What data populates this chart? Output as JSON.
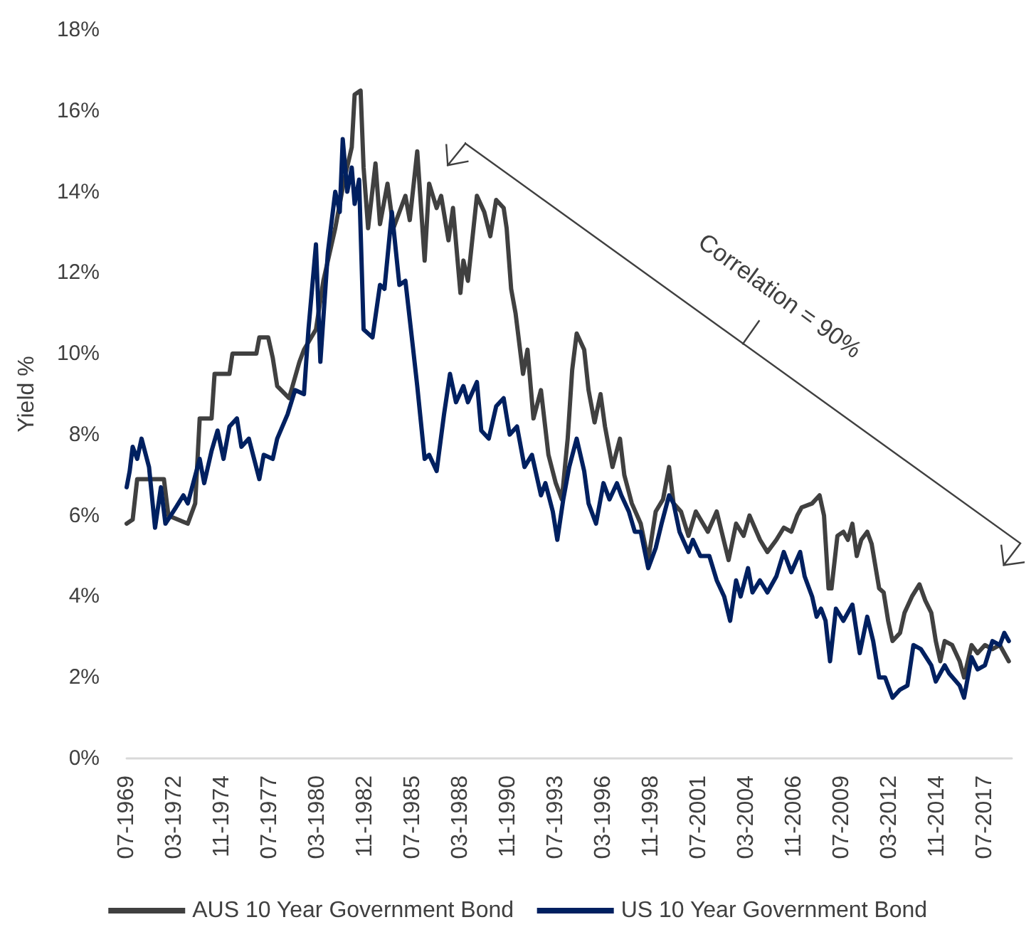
{
  "chart_data": {
    "type": "line",
    "ylabel": "Yield %",
    "annotations": [
      "Correlation = 90%"
    ],
    "xlim": [
      "1969-07",
      "2019-01"
    ],
    "xticks": [
      {
        "value": "1969-07",
        "label": "07-1969"
      },
      {
        "value": "1972-03",
        "label": "03-1972"
      },
      {
        "value": "1974-11",
        "label": "11-1974"
      },
      {
        "value": "1977-07",
        "label": "07-1977"
      },
      {
        "value": "1980-03",
        "label": "03-1980"
      },
      {
        "value": "1982-11",
        "label": "11-1982"
      },
      {
        "value": "1985-07",
        "label": "07-1985"
      },
      {
        "value": "1988-03",
        "label": "03-1988"
      },
      {
        "value": "1990-11",
        "label": "11-1990"
      },
      {
        "value": "1993-07",
        "label": "07-1993"
      },
      {
        "value": "1996-03",
        "label": "03-1996"
      },
      {
        "value": "1998-11",
        "label": "11-1998"
      },
      {
        "value": "2001-07",
        "label": "07-2001"
      },
      {
        "value": "2004-03",
        "label": "03-2004"
      },
      {
        "value": "2006-11",
        "label": "11-2006"
      },
      {
        "value": "2009-07",
        "label": "07-2009"
      },
      {
        "value": "2012-03",
        "label": "03-2012"
      },
      {
        "value": "2014-11",
        "label": "11-2014"
      },
      {
        "value": "2017-07",
        "label": "07-2017"
      }
    ],
    "ylim": [
      0,
      18
    ],
    "yticks": [
      {
        "value": 0,
        "label": "0%"
      },
      {
        "value": 2,
        "label": "2%"
      },
      {
        "value": 4,
        "label": "4%"
      },
      {
        "value": 6,
        "label": "6%"
      },
      {
        "value": 8,
        "label": "8%"
      },
      {
        "value": 10,
        "label": "10%"
      },
      {
        "value": 12,
        "label": "12%"
      },
      {
        "value": 14,
        "label": "14%"
      },
      {
        "value": 16,
        "label": "16%"
      },
      {
        "value": 18,
        "label": "18%"
      }
    ],
    "grid": false,
    "legend": "bottom",
    "marker": "none",
    "line_style": "solid",
    "series": [
      {
        "name": "AUS 10 Year Government Bond",
        "color": "#404040",
        "x": [
          "1969-07",
          "1969-11",
          "1970-02",
          "1971-08",
          "1971-11",
          "1972-12",
          "1973-05",
          "1973-08",
          "1974-04",
          "1974-06",
          "1975-04",
          "1975-06",
          "1976-10",
          "1976-12",
          "1977-06",
          "1977-09",
          "1977-12",
          "1978-08",
          "1979-03",
          "1979-06",
          "1980-02",
          "1980-07",
          "1981-03",
          "1981-09",
          "1982-02",
          "1982-04",
          "1982-08",
          "1982-10",
          "1983-01",
          "1983-06",
          "1983-09",
          "1984-02",
          "1984-06",
          "1985-02",
          "1985-05",
          "1985-10",
          "1986-03",
          "1986-06",
          "1986-11",
          "1987-02",
          "1987-07",
          "1987-10",
          "1988-03",
          "1988-05",
          "1988-08",
          "1989-02",
          "1989-07",
          "1989-11",
          "1990-03",
          "1990-08",
          "1990-10",
          "1991-01",
          "1991-04",
          "1991-09",
          "1991-12",
          "1992-04",
          "1992-09",
          "1993-02",
          "1993-07",
          "1993-11",
          "1994-03",
          "1994-06",
          "1994-09",
          "1995-02",
          "1995-05",
          "1995-09",
          "1996-01",
          "1996-04",
          "1996-09",
          "1997-02",
          "1997-05",
          "1997-10",
          "1998-04",
          "1998-09",
          "1999-02",
          "1999-07",
          "1999-11",
          "2000-02",
          "2000-07",
          "2000-12",
          "2001-05",
          "2002-01",
          "2002-07",
          "2003-03",
          "2003-08",
          "2004-01",
          "2004-05",
          "2004-12",
          "2005-05",
          "2005-11",
          "2006-04",
          "2006-09",
          "2007-01",
          "2007-04",
          "2007-11",
          "2008-04",
          "2008-07",
          "2008-10",
          "2008-12",
          "2009-04",
          "2009-08",
          "2009-11",
          "2010-02",
          "2010-05",
          "2010-08",
          "2010-12",
          "2011-03",
          "2011-08",
          "2011-11",
          "2012-02",
          "2012-05",
          "2012-10",
          "2013-01",
          "2013-06",
          "2013-11",
          "2014-03",
          "2014-07",
          "2014-10",
          "2015-01",
          "2015-04",
          "2015-09",
          "2016-02",
          "2016-05",
          "2016-10",
          "2017-02",
          "2017-07",
          "2017-12",
          "2018-05",
          "2018-11"
        ],
        "values": [
          5.8,
          5.9,
          6.9,
          6.9,
          6.0,
          5.8,
          6.3,
          8.4,
          8.4,
          9.5,
          9.5,
          10.0,
          10.0,
          10.4,
          10.4,
          9.9,
          9.2,
          8.9,
          9.8,
          10.1,
          10.6,
          11.8,
          13.1,
          14.3,
          15.1,
          16.4,
          16.5,
          14.6,
          13.1,
          14.7,
          13.2,
          14.2,
          13.1,
          13.9,
          13.3,
          15.0,
          12.3,
          14.2,
          13.6,
          13.9,
          12.8,
          13.6,
          11.5,
          12.3,
          11.8,
          13.9,
          13.5,
          12.9,
          13.8,
          13.6,
          13.1,
          11.6,
          11.0,
          9.5,
          10.1,
          8.4,
          9.1,
          7.5,
          6.8,
          6.4,
          7.9,
          9.6,
          10.5,
          10.1,
          9.1,
          8.3,
          9.0,
          8.2,
          7.2,
          7.9,
          7.0,
          6.3,
          5.8,
          4.9,
          6.1,
          6.4,
          7.2,
          6.3,
          6.1,
          5.5,
          6.1,
          5.6,
          6.1,
          4.9,
          5.8,
          5.5,
          6.0,
          5.4,
          5.1,
          5.4,
          5.7,
          5.6,
          6.0,
          6.2,
          6.3,
          6.5,
          6.0,
          4.2,
          4.2,
          5.5,
          5.6,
          5.4,
          5.8,
          5.0,
          5.4,
          5.6,
          5.3,
          4.2,
          4.1,
          3.4,
          2.9,
          3.1,
          3.6,
          4.0,
          4.3,
          3.9,
          3.6,
          2.9,
          2.4,
          2.9,
          2.8,
          2.4,
          2.0,
          2.8,
          2.6,
          2.8,
          2.7,
          2.8,
          2.4
        ]
      },
      {
        "name": "US 10 Year Government Bond",
        "color": "#002060",
        "x": [
          "1969-07",
          "1969-09",
          "1969-11",
          "1970-02",
          "1970-05",
          "1970-10",
          "1971-02",
          "1971-06",
          "1971-09",
          "1972-04",
          "1972-09",
          "1972-12",
          "1973-08",
          "1973-11",
          "1974-04",
          "1974-08",
          "1974-12",
          "1975-04",
          "1975-09",
          "1975-12",
          "1976-05",
          "1976-12",
          "1977-03",
          "1977-09",
          "1977-12",
          "1978-07",
          "1978-12",
          "1979-06",
          "1979-09",
          "1980-02",
          "1980-05",
          "1980-10",
          "1981-03",
          "1981-06",
          "1981-08",
          "1981-11",
          "1982-02",
          "1982-04",
          "1982-07",
          "1982-10",
          "1983-04",
          "1983-09",
          "1983-12",
          "1984-05",
          "1984-10",
          "1985-02",
          "1985-07",
          "1985-10",
          "1986-03",
          "1986-06",
          "1986-11",
          "1987-04",
          "1987-08",
          "1987-12",
          "1988-05",
          "1988-08",
          "1989-02",
          "1989-05",
          "1989-10",
          "1990-03",
          "1990-08",
          "1990-12",
          "1991-05",
          "1991-10",
          "1992-03",
          "1992-09",
          "1992-12",
          "1993-05",
          "1993-08",
          "1993-12",
          "1994-04",
          "1994-09",
          "1995-02",
          "1995-05",
          "1995-10",
          "1996-03",
          "1996-07",
          "1996-12",
          "1997-03",
          "1997-08",
          "1997-12",
          "1998-04",
          "1998-09",
          "1999-02",
          "1999-06",
          "1999-11",
          "2000-02",
          "2000-06",
          "2000-12",
          "2001-03",
          "2001-08",
          "2002-02",
          "2002-07",
          "2002-12",
          "2003-04",
          "2003-08",
          "2003-11",
          "2004-04",
          "2004-07",
          "2004-12",
          "2005-05",
          "2005-11",
          "2006-04",
          "2006-09",
          "2007-03",
          "2007-06",
          "2007-11",
          "2008-02",
          "2008-05",
          "2008-08",
          "2008-11",
          "2009-03",
          "2009-08",
          "2010-02",
          "2010-07",
          "2010-12",
          "2011-04",
          "2011-08",
          "2011-12",
          "2012-05",
          "2012-10",
          "2013-03",
          "2013-07",
          "2013-12",
          "2014-07",
          "2014-10",
          "2015-04",
          "2015-07",
          "2016-02",
          "2016-05",
          "2016-10",
          "2017-02",
          "2017-07",
          "2017-12",
          "2018-05",
          "2018-08",
          "2018-11"
        ],
        "values": [
          6.7,
          7.1,
          7.7,
          7.4,
          7.9,
          7.2,
          5.7,
          6.7,
          5.8,
          6.2,
          6.5,
          6.3,
          7.4,
          6.8,
          7.6,
          8.1,
          7.4,
          8.2,
          8.4,
          7.7,
          7.9,
          6.9,
          7.5,
          7.4,
          7.9,
          8.5,
          9.1,
          9.0,
          10.6,
          12.7,
          9.8,
          12.5,
          14.0,
          13.5,
          15.3,
          14.0,
          14.6,
          13.7,
          14.3,
          10.6,
          10.4,
          11.7,
          11.6,
          13.5,
          11.7,
          11.8,
          10.2,
          9.2,
          7.4,
          7.5,
          7.1,
          8.5,
          9.5,
          8.8,
          9.2,
          8.8,
          9.3,
          8.1,
          7.9,
          8.7,
          8.9,
          8.0,
          8.2,
          7.2,
          7.5,
          6.5,
          6.8,
          6.1,
          5.4,
          6.4,
          7.2,
          7.9,
          7.1,
          6.3,
          5.8,
          6.8,
          6.4,
          6.8,
          6.5,
          6.1,
          5.6,
          5.6,
          4.7,
          5.2,
          5.8,
          6.5,
          6.3,
          5.6,
          5.1,
          5.4,
          5.0,
          5.0,
          4.4,
          4.0,
          3.4,
          4.4,
          4.0,
          4.7,
          4.1,
          4.4,
          4.1,
          4.5,
          5.1,
          4.6,
          5.1,
          4.5,
          4.0,
          3.5,
          3.7,
          3.4,
          2.4,
          3.7,
          3.4,
          3.8,
          2.6,
          3.5,
          2.9,
          2.0,
          2.0,
          1.5,
          1.7,
          1.8,
          2.8,
          2.7,
          2.3,
          1.9,
          2.3,
          2.1,
          1.8,
          1.5,
          2.5,
          2.2,
          2.3,
          2.9,
          2.8,
          3.1,
          2.9
        ]
      }
    ]
  }
}
